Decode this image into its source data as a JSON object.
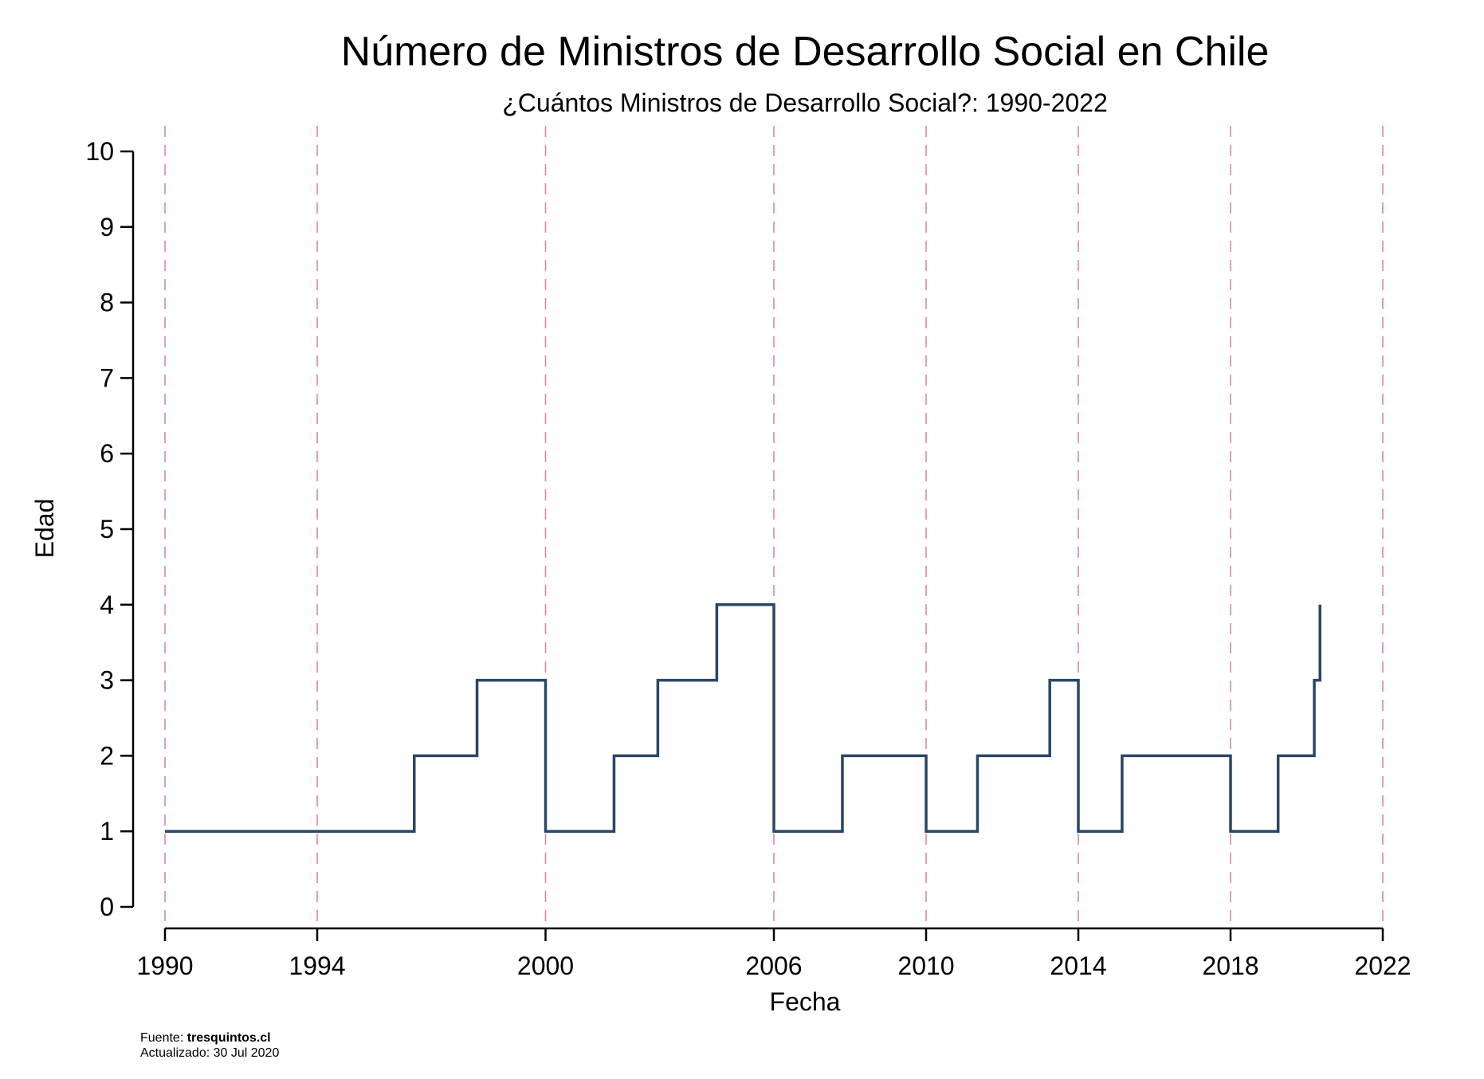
{
  "chart_data": {
    "type": "line",
    "step": true,
    "title": "Número de Ministros de Desarrollo Social en Chile",
    "subtitle": "¿Cuántos Ministros de Desarrollo Social?: 1990-2022",
    "xlabel": "Fecha",
    "ylabel": "Edad",
    "xlim": [
      1990,
      2022
    ],
    "ylim": [
      0,
      10
    ],
    "x_ticks": [
      "1990",
      "1994",
      "2000",
      "2006",
      "2010",
      "2014",
      "2018",
      "2022"
    ],
    "y_ticks": [
      "0",
      "1",
      "2",
      "3",
      "4",
      "5",
      "6",
      "7",
      "8",
      "9",
      "10"
    ],
    "vlines": [
      "1990",
      "1994",
      "2000",
      "2006",
      "2010",
      "2014",
      "2018",
      "2022"
    ],
    "series": [
      {
        "x": [
          1990.0,
          1996.55,
          1998.2,
          2000.0,
          2001.8,
          2002.95,
          2004.5,
          2006.0,
          2007.8,
          2010.0,
          2011.35,
          2013.25,
          2014.0,
          2015.15,
          2018.0,
          2019.25,
          2020.2,
          2020.35
        ],
        "y": [
          1,
          2,
          3,
          1,
          2,
          3,
          4,
          1,
          2,
          1,
          2,
          3,
          1,
          2,
          1,
          2,
          3,
          4
        ],
        "end_x": 2020.35
      }
    ],
    "line_color": "#2a4668",
    "vline_color": "#d98a9a",
    "grid": false
  },
  "footnote": {
    "source_label": "Fuente: ",
    "source_value": "tresquintos.cl",
    "updated": "Actualizado: 30 Jul 2020"
  }
}
